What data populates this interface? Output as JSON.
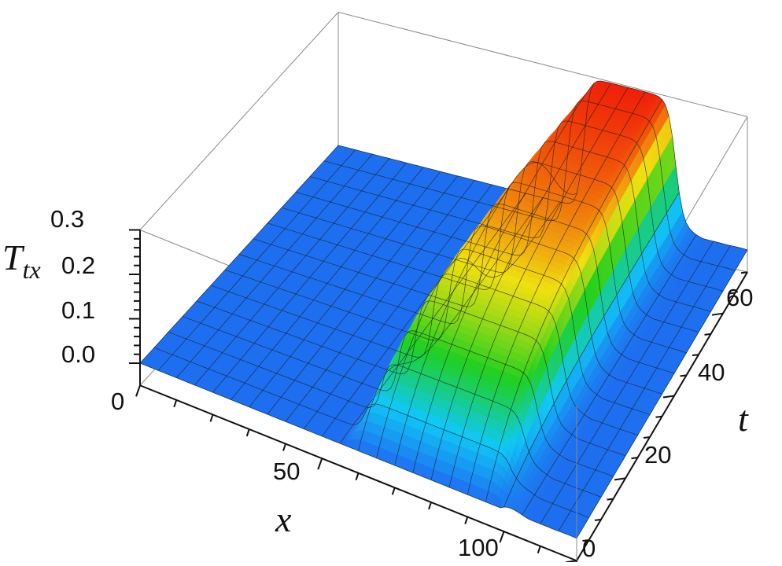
{
  "chart_data": {
    "type": "surface3d",
    "xlabel": "x",
    "ylabel": "t",
    "zlabel": {
      "main": "T",
      "sub": "tx"
    },
    "xlim": [
      0,
      120
    ],
    "ylim": [
      0,
      70
    ],
    "zlim": [
      -0.05,
      0.3
    ],
    "x_ticks": [
      0,
      50,
      100
    ],
    "y_ticks": [
      0,
      20,
      40,
      60
    ],
    "z_ticks": [
      0.0,
      0.1,
      0.2,
      0.3
    ],
    "x_tick_labels": [
      "0",
      "50",
      "100"
    ],
    "y_tick_labels": [
      "0",
      "20",
      "40",
      "60"
    ],
    "z_tick_labels": [
      "0.0",
      "0.1",
      "0.2",
      "0.3"
    ],
    "box": true,
    "mesh": true,
    "colormap": [
      "#1e6ff0",
      "#10c8f5",
      "#20d020",
      "#f0e010",
      "#f01808"
    ],
    "surface": {
      "description_values": {
        "baseline": 0.0,
        "peak": 0.3,
        "step_location_x": 57,
        "step_front_x_start": 57,
        "step_front_x_end_at_t70": 72,
        "plateau_back_edge_x": 99,
        "growth_time_t": 15
      }
    }
  }
}
